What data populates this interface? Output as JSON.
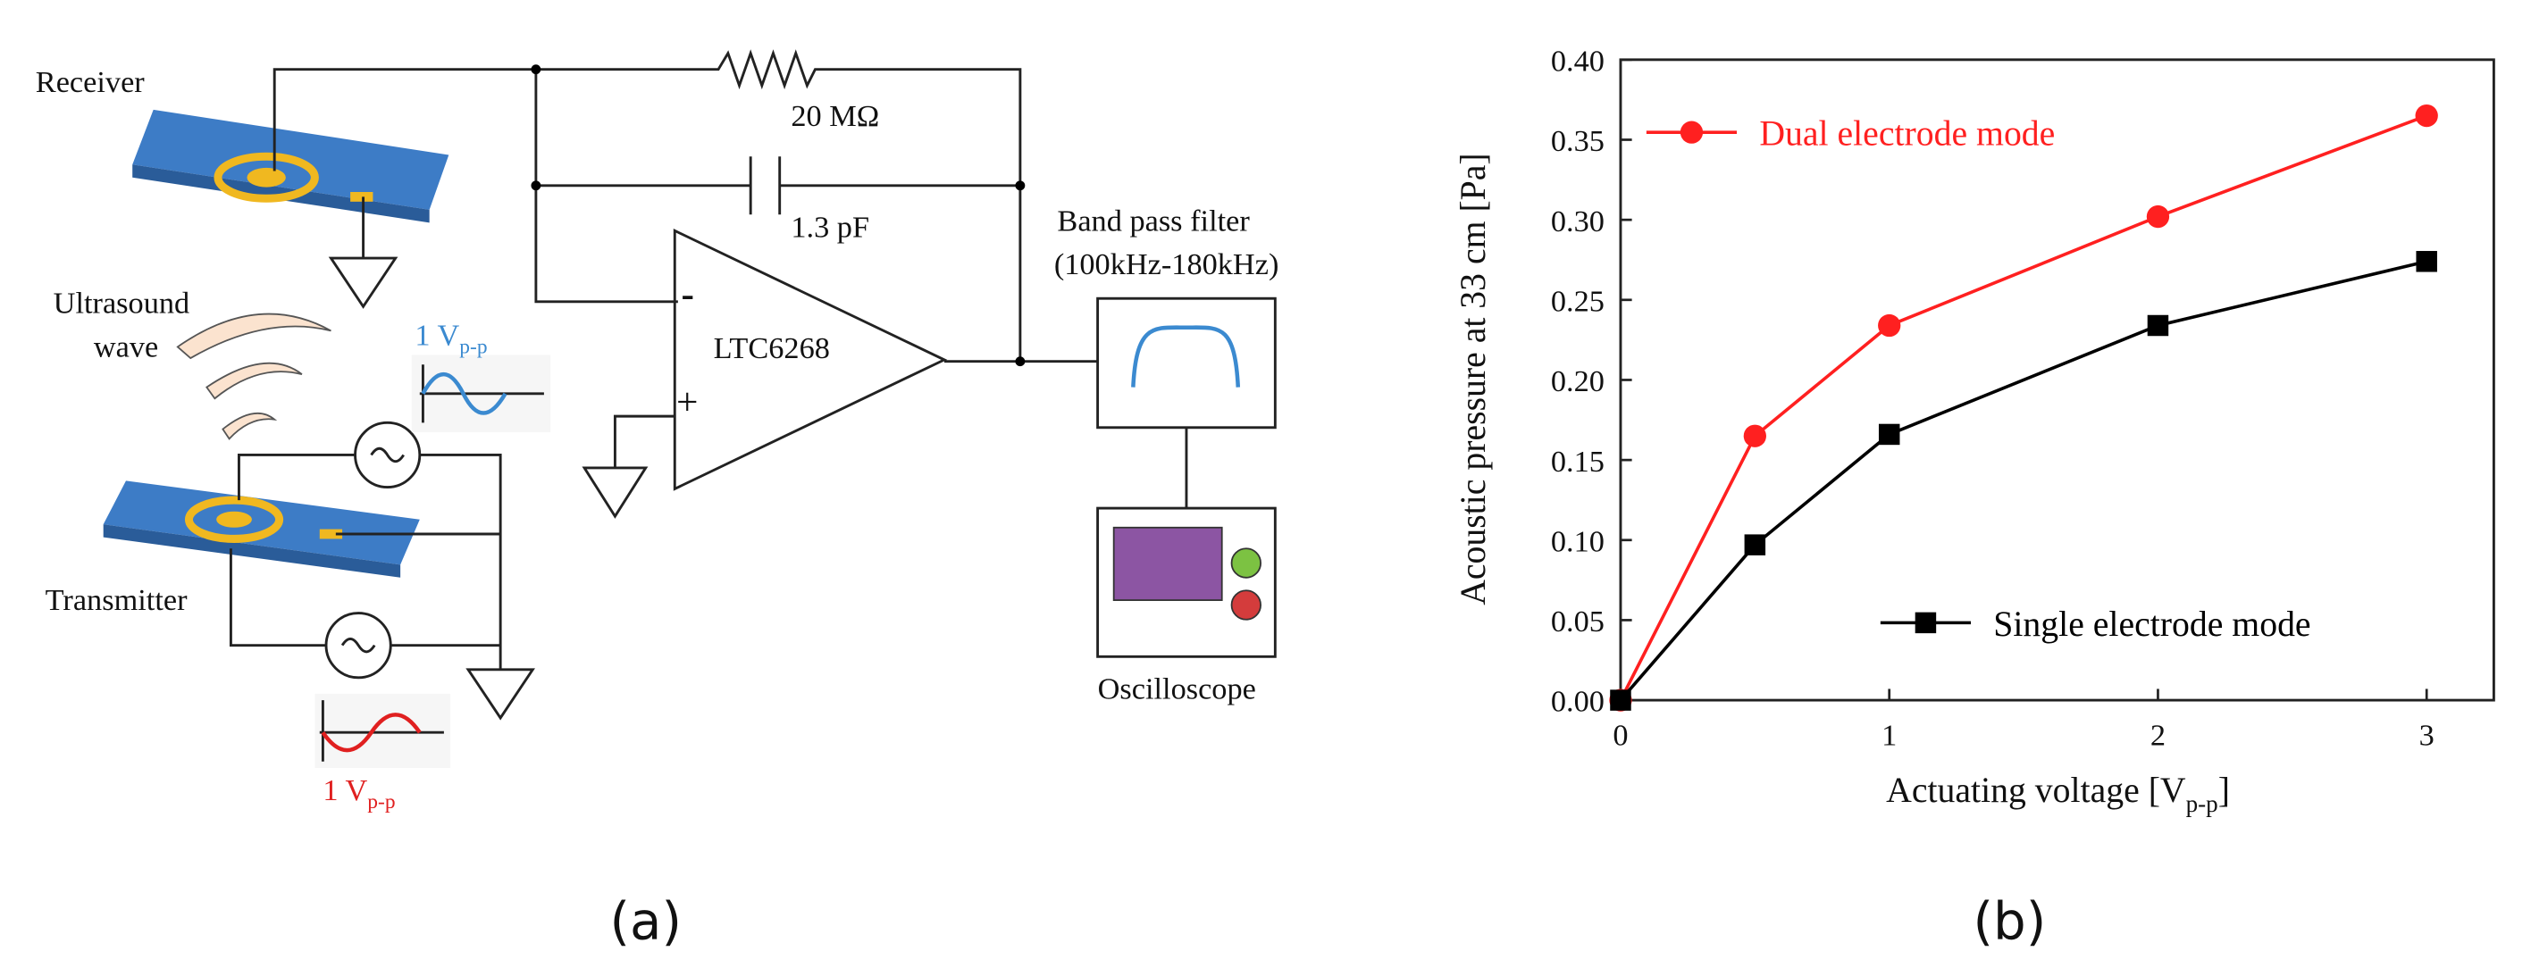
{
  "chart_data": {
    "type": "line",
    "x_label_parts": [
      "Actuating voltage [V",
      "p-p",
      "]"
    ],
    "y_label": "Acoustic pressure at 33 cm [Pa]",
    "x": [
      0,
      0.5,
      1,
      2,
      3
    ],
    "series": [
      {
        "name": "Dual electrode mode",
        "color": "#ff2020",
        "marker": "circle",
        "values": [
          0,
          0.165,
          0.234,
          0.302,
          0.365
        ]
      },
      {
        "name": "Single electrode mode",
        "color": "#000000",
        "marker": "square",
        "values": [
          0,
          0.097,
          0.166,
          0.234,
          0.274
        ]
      }
    ],
    "xlim": [
      0,
      3.25
    ],
    "ylim": [
      0,
      0.4
    ],
    "xticks": [
      0,
      1,
      2,
      3
    ],
    "yticks": [
      {
        "value": 0,
        "label": "0.00"
      },
      {
        "value": 0.05,
        "label": "0.05"
      },
      {
        "value": 0.1,
        "label": "0.10"
      },
      {
        "value": 0.15,
        "label": "0.15"
      },
      {
        "value": 0.2,
        "label": "0.20"
      },
      {
        "value": 0.25,
        "label": "0.25"
      },
      {
        "value": 0.3,
        "label": "0.30"
      },
      {
        "value": 0.35,
        "label": "0.35"
      },
      {
        "value": 0.4,
        "label": "0.40"
      }
    ],
    "grid": false
  },
  "diagram": {
    "receiver": "Receiver",
    "resistor": "20 MΩ",
    "capacitor": "1.3 pF",
    "filter_title": "Band pass filter",
    "filter_range": "(100kHz-180kHz)",
    "wave_label": [
      "Ultrasound",
      "wave"
    ],
    "amplifier": "LTC6268",
    "minus": "-",
    "plus": "+",
    "blue_signal": [
      "1 V",
      "p-p"
    ],
    "red_signal": [
      "1 V",
      "p-p"
    ],
    "transmitter": "Transmitter",
    "oscilloscope": "Oscilloscope"
  },
  "captions": [
    "(a)",
    "(b)"
  ]
}
